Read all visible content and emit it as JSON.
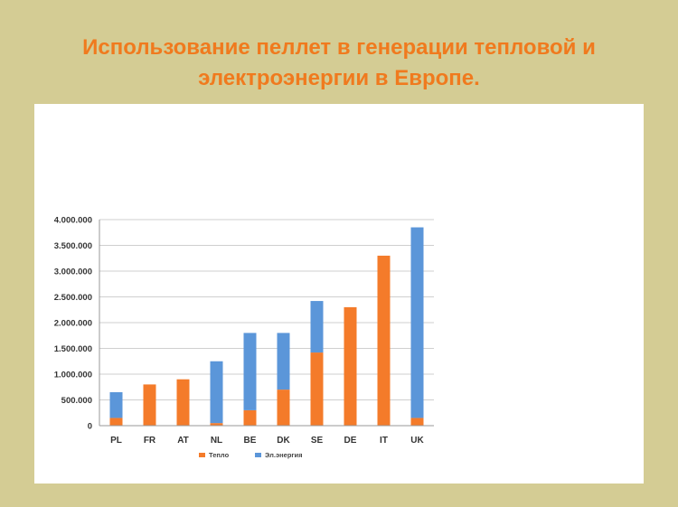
{
  "slide": {
    "title_line1": "Использование пеллет в генерации тепловой и",
    "title_line2": "электроэнергии в Европе.",
    "title_color": "#f07a1e",
    "background": "#d4cc94"
  },
  "chart_data": {
    "type": "bar",
    "stacked": true,
    "categories": [
      "PL",
      "FR",
      "AT",
      "NL",
      "BE",
      "DK",
      "SE",
      "DE",
      "IT",
      "UK"
    ],
    "series": [
      {
        "name": "Тепло",
        "color": "#f47b2a",
        "values": [
          150000,
          800000,
          900000,
          50000,
          300000,
          700000,
          1420000,
          2300000,
          3300000,
          150000
        ]
      },
      {
        "name": "Эл.энергия",
        "color": "#5b96d9",
        "values": [
          500000,
          0,
          0,
          1200000,
          1500000,
          1100000,
          1000000,
          0,
          0,
          3700000
        ]
      }
    ],
    "yticks": [
      "0",
      "500.000",
      "1.000.000",
      "1.500.000",
      "2.000.000",
      "2.500.000",
      "3.000.000",
      "3.500.000",
      "4.000.000"
    ],
    "ylim": [
      0,
      4000000
    ],
    "grid": true,
    "legend_position": "bottom"
  }
}
